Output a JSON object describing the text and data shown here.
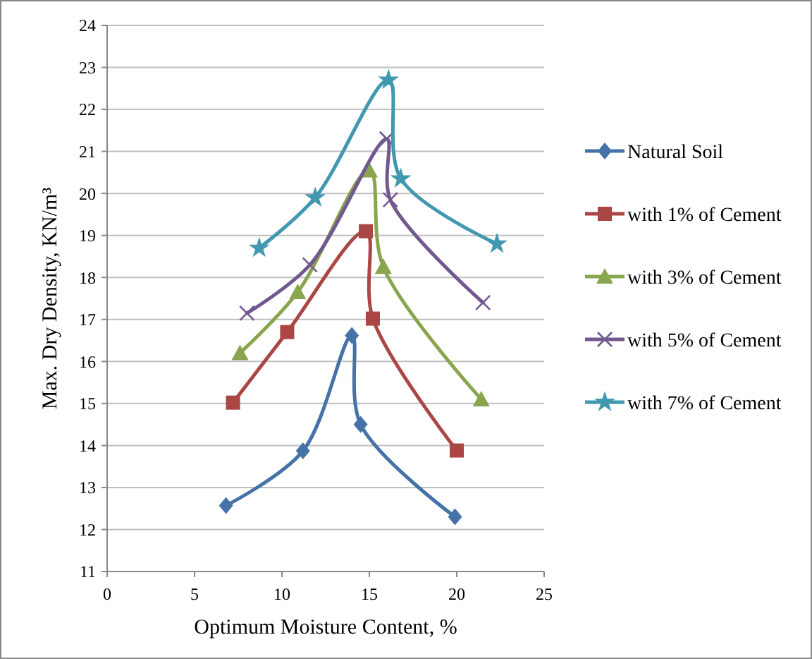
{
  "chart_data": {
    "type": "line",
    "xlabel": "Optimum Moisture Content, %",
    "ylabel": "Max. Dry Density, KN/m³",
    "xlim": [
      0,
      25
    ],
    "xticks": [
      0,
      5,
      10,
      15,
      20,
      25
    ],
    "ylim": [
      11,
      24
    ],
    "yticks": [
      11,
      12,
      13,
      14,
      15,
      16,
      17,
      18,
      19,
      20,
      21,
      22,
      23,
      24
    ],
    "grid": "y",
    "legend": "right",
    "line_style": "solid",
    "series": [
      {
        "name": "Natural Soil",
        "color": "#4572a7",
        "marker": "diamond",
        "x": [
          6.8,
          11.2,
          14.0,
          14.5,
          19.9
        ],
        "values": [
          12.57,
          13.87,
          16.62,
          14.5,
          12.3
        ]
      },
      {
        "name": "with 1% of Cement",
        "color": "#aa4643",
        "marker": "square",
        "x": [
          7.2,
          10.3,
          14.8,
          15.2,
          20.0
        ],
        "values": [
          15.02,
          16.7,
          19.1,
          17.02,
          13.88
        ]
      },
      {
        "name": "with 3% of Cement",
        "color": "#89a54e",
        "marker": "triangle",
        "x": [
          7.6,
          10.9,
          15.0,
          15.8,
          21.4
        ],
        "values": [
          16.2,
          17.65,
          20.55,
          18.25,
          15.1
        ]
      },
      {
        "name": "with 5% of Cement",
        "color": "#71588f",
        "marker": "cross",
        "x": [
          8.0,
          11.6,
          16.0,
          16.2,
          21.5
        ],
        "values": [
          17.15,
          18.3,
          21.3,
          19.85,
          17.4
        ]
      },
      {
        "name": "with 7% of Cement",
        "color": "#4198af",
        "marker": "star",
        "x": [
          8.7,
          11.9,
          16.1,
          16.8,
          22.3
        ],
        "values": [
          18.7,
          19.9,
          22.7,
          20.35,
          18.8
        ]
      }
    ]
  }
}
